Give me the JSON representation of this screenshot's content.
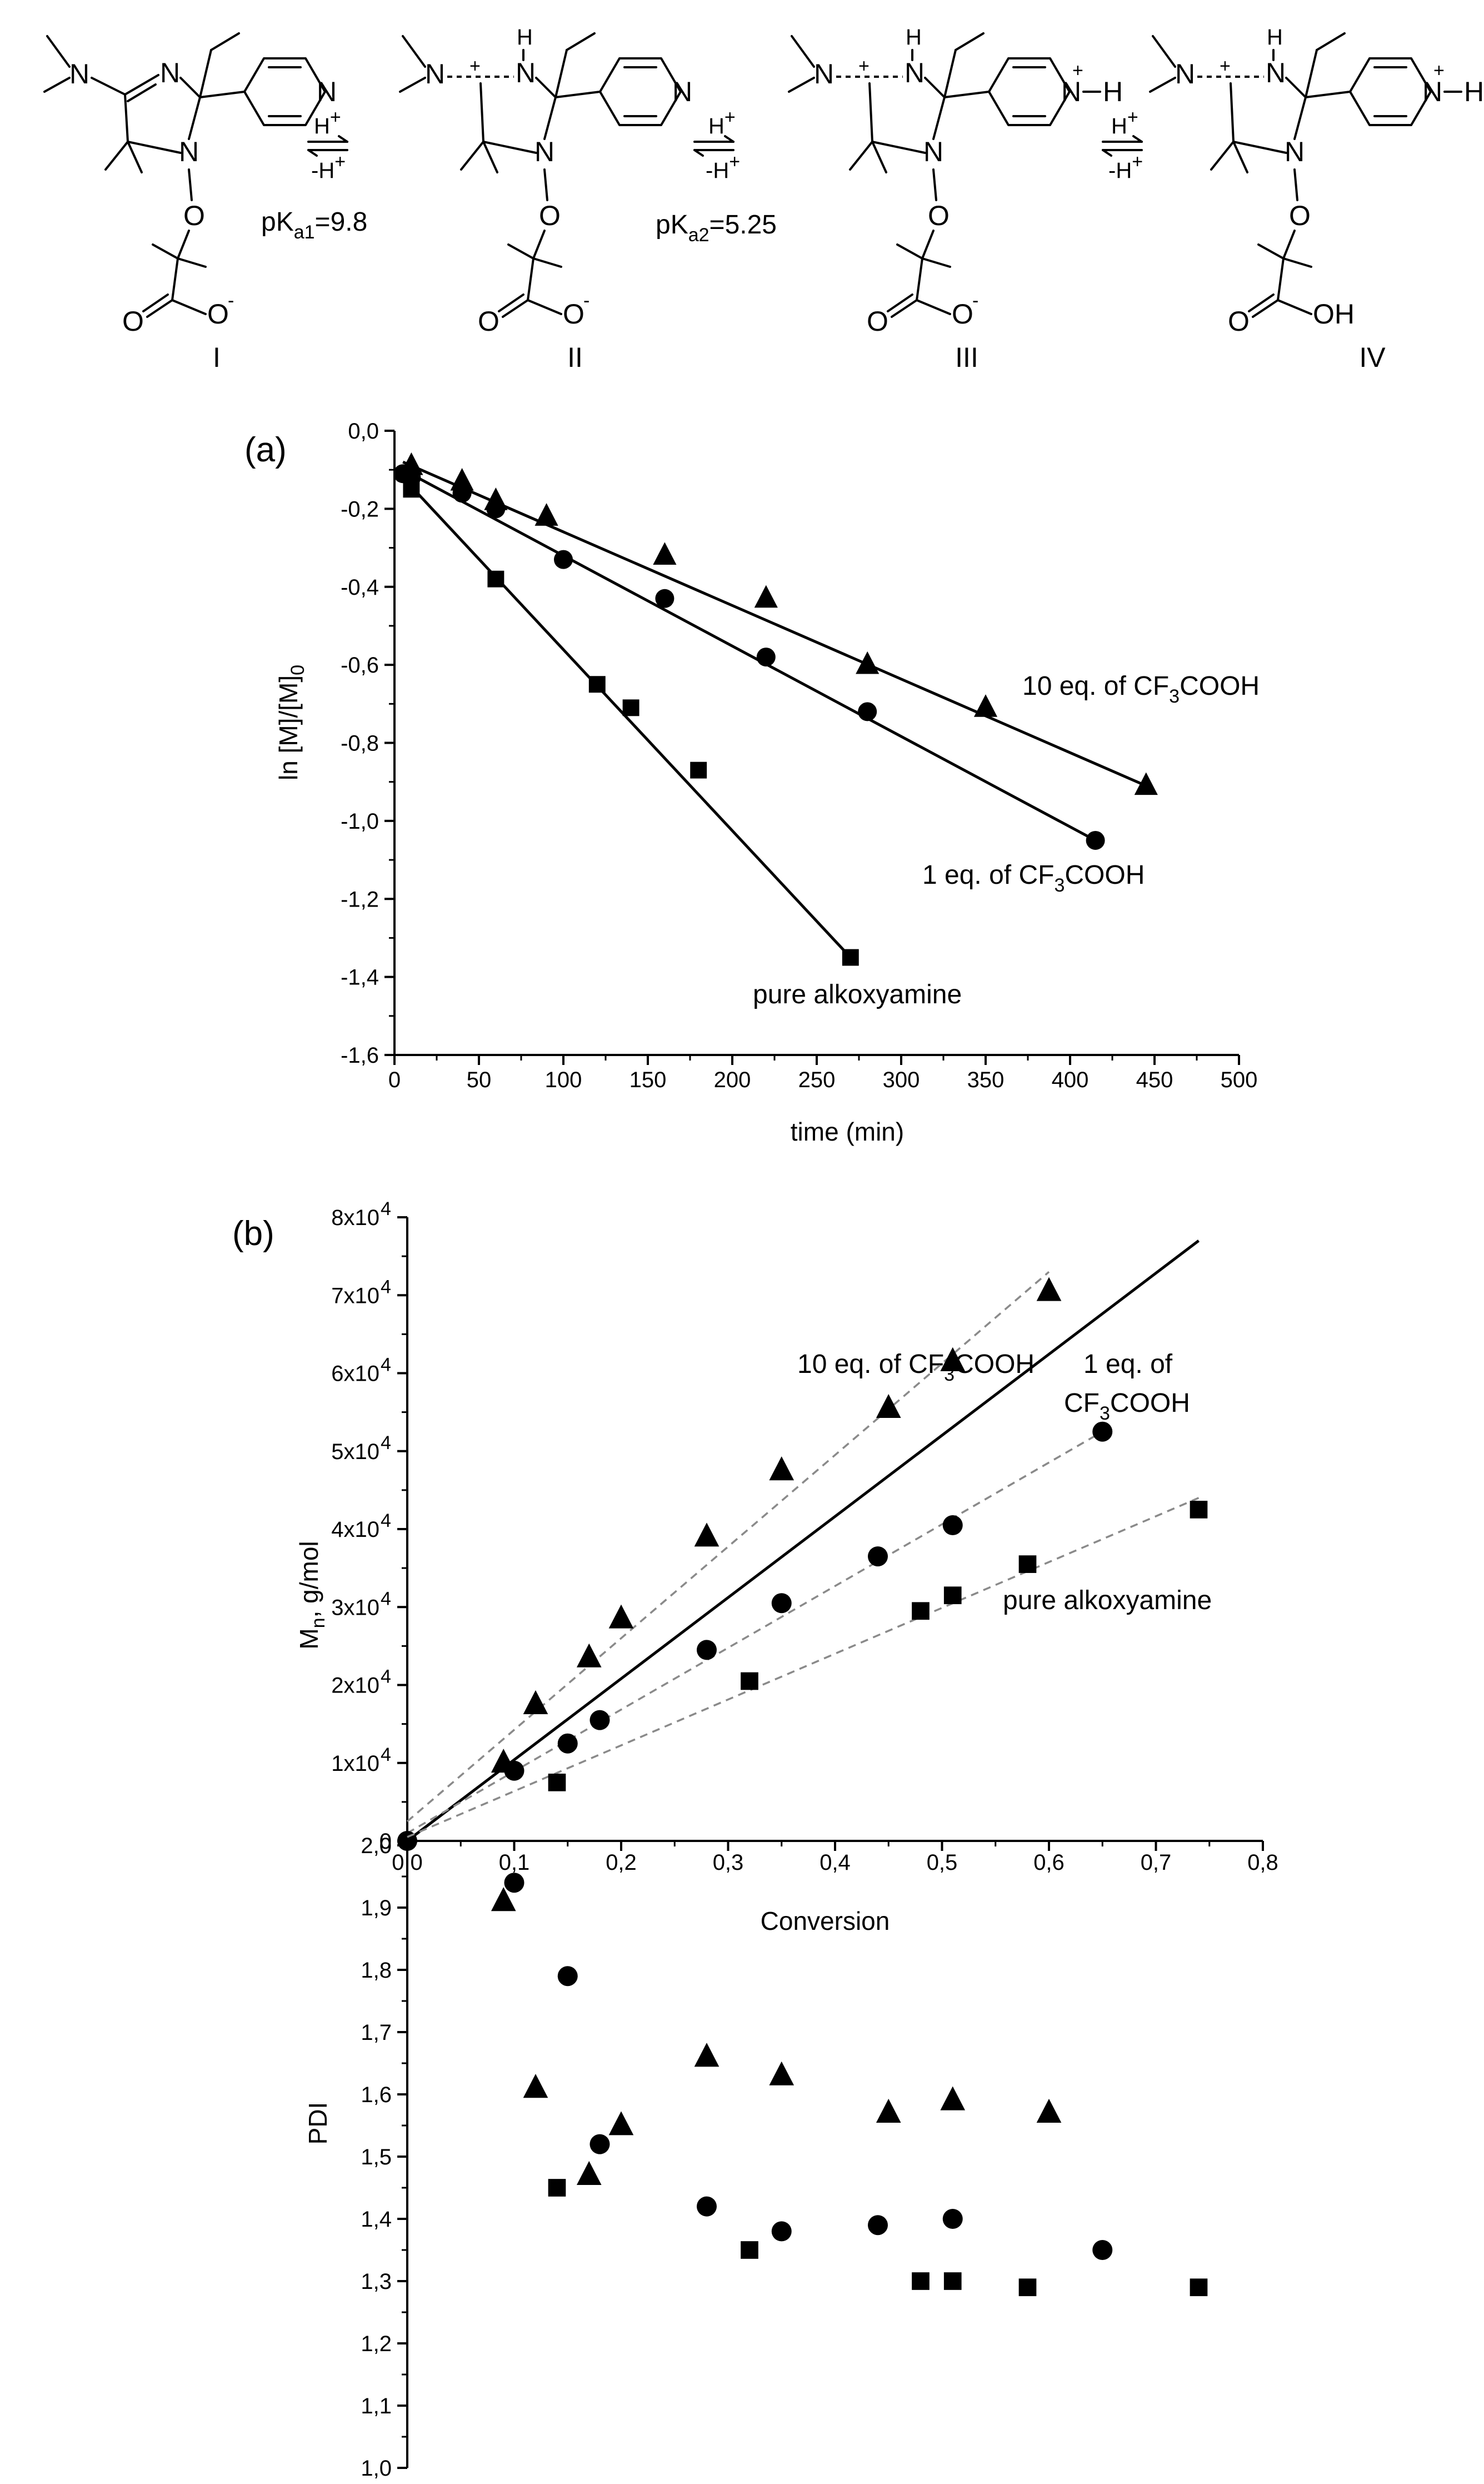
{
  "scheme": {
    "species": [
      {
        "id": "I",
        "label": "I"
      },
      {
        "id": "II",
        "label": "II"
      },
      {
        "id": "III",
        "label": "III"
      },
      {
        "id": "IV",
        "label": "IV"
      }
    ],
    "arrows": [
      {
        "forward": "H",
        "forward_sup": "+",
        "back": "-H",
        "back_sup": "+",
        "pk_main": "pK",
        "pk_sub": "a1",
        "pk_value": "=9.8"
      },
      {
        "forward": "H",
        "forward_sup": "+",
        "back": "-H",
        "back_sup": "+",
        "pk_main": "pK",
        "pk_sub": "a2",
        "pk_value": "=5.25"
      },
      {
        "forward": "H",
        "forward_sup": "+",
        "back": "-H",
        "back_sup": "+"
      }
    ],
    "atoms": {
      "N": "N",
      "O": "O",
      "H": "H",
      "OH": "OH",
      "minus": "-",
      "plus": "+"
    }
  },
  "chart_data": [
    {
      "panel_label": "(a)",
      "type": "scatter",
      "xlabel": "time (min)",
      "ylabel": "ln [M]/[M]",
      "ylabel_sub": "0",
      "xlim": [
        0,
        500
      ],
      "ylim": [
        -1.6,
        0.0
      ],
      "xticks": [
        "0",
        "50",
        "100",
        "150",
        "200",
        "250",
        "300",
        "350",
        "400",
        "450",
        "500"
      ],
      "yticks": [
        "0,0",
        "-0,2",
        "-0,4",
        "-0,6",
        "-0,8",
        "-1,0",
        "-1,2",
        "-1,4",
        "-1,6"
      ],
      "series": [
        {
          "name": "10 eq. of CF3COOH",
          "label_main": "10 eq. of CF",
          "label_sub": "3",
          "label_tail": "COOH",
          "marker": "triangle",
          "x": [
            10,
            40,
            60,
            90,
            160,
            220,
            280,
            350,
            445
          ],
          "y": [
            -0.09,
            -0.13,
            -0.18,
            -0.22,
            -0.32,
            -0.43,
            -0.6,
            -0.71,
            -0.91
          ],
          "fit": [
            [
              5,
              -0.08
            ],
            [
              445,
              -0.91
            ]
          ]
        },
        {
          "name": "1 eq. of CF3COOH",
          "label_main": "1 eq. of CF",
          "label_sub": "3",
          "label_tail": "COOH",
          "marker": "circle",
          "x": [
            5,
            10,
            40,
            60,
            100,
            160,
            220,
            280,
            415
          ],
          "y": [
            -0.11,
            -0.12,
            -0.16,
            -0.2,
            -0.33,
            -0.43,
            -0.58,
            -0.72,
            -1.05
          ],
          "fit": [
            [
              5,
              -0.1
            ],
            [
              415,
              -1.05
            ]
          ]
        },
        {
          "name": "pure alkoxyamine",
          "label_main": "pure alkoxyamine",
          "marker": "square",
          "x": [
            10,
            60,
            120,
            140,
            180,
            270
          ],
          "y": [
            -0.15,
            -0.38,
            -0.65,
            -0.71,
            -0.87,
            -1.35
          ],
          "fit": [
            [
              5,
              -0.12
            ],
            [
              270,
              -1.35
            ]
          ]
        }
      ]
    },
    {
      "panel_label": "(b)",
      "type": "scatter",
      "xlabel": "Conversion",
      "ylabel": "M",
      "ylabel_sub": "n",
      "ylabel_tail": ", g/mol",
      "xlim": [
        0,
        0.8
      ],
      "ylim": [
        0,
        80000
      ],
      "xticks": [
        "0,0",
        "0,1",
        "0,2",
        "0,3",
        "0,4",
        "0,5",
        "0,6",
        "0,7",
        "0,8"
      ],
      "yticks": [
        "0",
        "1x10",
        "2x10",
        "3x10",
        "4x10",
        "5x10",
        "6x10",
        "7x10",
        "8x10"
      ],
      "ytick_exp": "4",
      "ideal_line": [
        [
          0,
          0
        ],
        [
          0.74,
          77000
        ]
      ],
      "series": [
        {
          "name": "10 eq. of CF3COOH",
          "label_main": "10 eq. of CF",
          "label_sub": "3",
          "label_tail": "COOH",
          "marker": "triangle",
          "x": [
            0.09,
            0.12,
            0.17,
            0.2,
            0.28,
            0.35,
            0.45,
            0.51,
            0.6
          ],
          "y": [
            10000,
            17500,
            23500,
            28500,
            39000,
            47500,
            55500,
            61500,
            70500
          ],
          "fit": [
            [
              0,
              2500
            ],
            [
              0.6,
              73000
            ]
          ]
        },
        {
          "name": "1 eq. of CF3COOH",
          "label_main": "1 eq. of",
          "label_line2": "CF",
          "label_sub": "3",
          "label_tail": "COOH",
          "marker": "circle",
          "x": [
            0.0,
            0.1,
            0.15,
            0.18,
            0.28,
            0.35,
            0.44,
            0.51,
            0.65
          ],
          "y": [
            0,
            9000,
            12500,
            15500,
            24500,
            30500,
            36500,
            40500,
            52500
          ],
          "fit": [
            [
              0,
              1000
            ],
            [
              0.65,
              52500
            ]
          ]
        },
        {
          "name": "pure alkoxyamine",
          "label_main": "pure alkoxyamine",
          "marker": "square",
          "x": [
            0.14,
            0.32,
            0.48,
            0.51,
            0.58,
            0.74
          ],
          "y": [
            7500,
            20500,
            29500,
            31500,
            35500,
            42500
          ],
          "fit": [
            [
              0,
              500
            ],
            [
              0.74,
              44000
            ]
          ]
        }
      ]
    },
    {
      "type": "scatter",
      "xlabel": "",
      "ylabel": "PDI",
      "xlim": [
        0,
        0.8
      ],
      "ylim": [
        1.0,
        2.0
      ],
      "yticks": [
        "1,0",
        "1,1",
        "1,2",
        "1,3",
        "1,4",
        "1,5",
        "1,6",
        "1,7",
        "1,8",
        "1,9",
        "2,0"
      ],
      "series": [
        {
          "name": "10 eq. of CF3COOH",
          "marker": "triangle",
          "x": [
            0.09,
            0.12,
            0.17,
            0.2,
            0.28,
            0.35,
            0.45,
            0.51,
            0.6
          ],
          "y": [
            1.91,
            1.61,
            1.47,
            1.55,
            1.66,
            1.63,
            1.57,
            1.59,
            1.57
          ]
        },
        {
          "name": "1 eq. of CF3COOH",
          "marker": "circle",
          "x": [
            0.1,
            0.15,
            0.18,
            0.28,
            0.35,
            0.44,
            0.51,
            0.65
          ],
          "y": [
            1.94,
            1.79,
            1.52,
            1.42,
            1.38,
            1.39,
            1.4,
            1.35
          ]
        },
        {
          "name": "pure alkoxyamine",
          "marker": "square",
          "x": [
            0.14,
            0.32,
            0.48,
            0.51,
            0.58,
            0.74
          ],
          "y": [
            1.45,
            1.35,
            1.3,
            1.3,
            1.29,
            1.29
          ]
        }
      ]
    }
  ]
}
